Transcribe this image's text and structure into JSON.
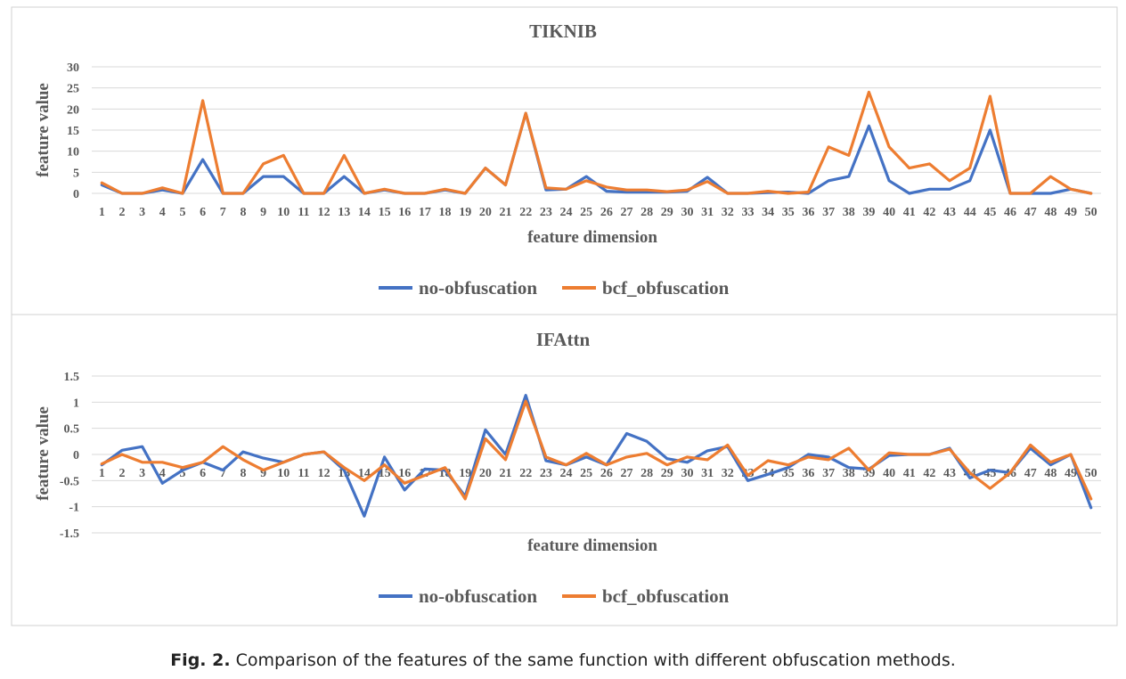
{
  "caption": {
    "label": "Fig. 2.",
    "text": "Comparison of the features of the same function with different obfuscation methods."
  },
  "colors": {
    "series1": "#4472c4",
    "series2": "#ed7d31",
    "grid": "#d9d9d9",
    "frame": "#d0d0d0"
  },
  "chart_data": [
    {
      "type": "line",
      "title": "TIKNIB",
      "xlabel": "feature dimension",
      "ylabel": "feature value",
      "ylim": [
        0,
        30
      ],
      "yticks": [
        "0",
        "5",
        "10",
        "15",
        "20",
        "25",
        "30"
      ],
      "ytick_values": [
        0,
        5,
        10,
        15,
        20,
        25,
        30
      ],
      "categories": [
        "1",
        "2",
        "3",
        "4",
        "5",
        "6",
        "7",
        "8",
        "9",
        "10",
        "11",
        "12",
        "13",
        "14",
        "15",
        "16",
        "17",
        "18",
        "19",
        "20",
        "21",
        "22",
        "23",
        "24",
        "25",
        "26",
        "27",
        "28",
        "29",
        "30",
        "31",
        "32",
        "33",
        "34",
        "35",
        "36",
        "37",
        "38",
        "39",
        "40",
        "41",
        "42",
        "43",
        "44",
        "45",
        "46",
        "47",
        "48",
        "49",
        "50"
      ],
      "grid": true,
      "legend": "bottom",
      "series": [
        {
          "name": "no-obfuscation",
          "values": [
            2,
            0,
            0,
            0.8,
            0,
            8,
            0,
            0,
            4,
            4,
            0,
            0,
            4,
            0,
            0.8,
            0,
            0,
            0.8,
            0,
            6,
            2,
            19,
            0.8,
            1,
            4,
            0.5,
            0.3,
            0.3,
            0.3,
            0.5,
            3.8,
            0,
            0,
            0.2,
            0.3,
            0,
            3,
            4,
            16,
            3,
            0,
            1,
            1,
            3,
            15,
            0,
            0,
            0,
            1,
            0
          ]
        },
        {
          "name": "bcf_obfuscation",
          "values": [
            2.5,
            0,
            0,
            1.3,
            0,
            22,
            0,
            0,
            7,
            9,
            0,
            0,
            9,
            0,
            1,
            0,
            0,
            1,
            0,
            6,
            2,
            19,
            1.3,
            1,
            3,
            1.5,
            0.8,
            0.8,
            0.4,
            0.8,
            2.8,
            0,
            0,
            0.5,
            0,
            0.3,
            11,
            9,
            24,
            11,
            6,
            7,
            3,
            6,
            23,
            0,
            0,
            4,
            1,
            0
          ]
        }
      ]
    },
    {
      "type": "line",
      "title": "IFAttn",
      "xlabel": "feature dimension",
      "ylabel": "feature value",
      "ylim": [
        -1.5,
        1.5
      ],
      "yticks": [
        "-1.5",
        "-1",
        "-0.5",
        "0",
        "0.5",
        "1",
        "1.5"
      ],
      "ytick_values": [
        -1.5,
        -1,
        -0.5,
        0,
        0.5,
        1,
        1.5
      ],
      "categories": [
        "1",
        "2",
        "3",
        "4",
        "5",
        "6",
        "7",
        "8",
        "9",
        "10",
        "11",
        "12",
        "13",
        "14",
        "15",
        "16",
        "17",
        "18",
        "19",
        "20",
        "21",
        "22",
        "23",
        "24",
        "25",
        "26",
        "27",
        "28",
        "29",
        "30",
        "31",
        "32",
        "33",
        "34",
        "35",
        "36",
        "37",
        "38",
        "39",
        "40",
        "41",
        "42",
        "43",
        "44",
        "45",
        "46",
        "47",
        "48",
        "49",
        "50"
      ],
      "grid": true,
      "legend": "bottom",
      "series": [
        {
          "name": "no-obfuscation",
          "values": [
            -0.2,
            0.08,
            0.15,
            -0.55,
            -0.3,
            -0.15,
            -0.3,
            0.05,
            -0.07,
            -0.15,
            0,
            0.05,
            -0.3,
            -1.18,
            -0.05,
            -0.68,
            -0.28,
            -0.3,
            -0.8,
            0.47,
            0,
            1.13,
            -0.12,
            -0.2,
            -0.05,
            -0.2,
            0.4,
            0.25,
            -0.08,
            -0.15,
            0.07,
            0.15,
            -0.5,
            -0.38,
            -0.25,
            0,
            -0.05,
            -0.25,
            -0.28,
            -0.02,
            0,
            0,
            0.12,
            -0.45,
            -0.3,
            -0.35,
            0.12,
            -0.2,
            0,
            -1.02
          ]
        },
        {
          "name": "bcf_obfuscation",
          "values": [
            -0.18,
            0,
            -0.15,
            -0.15,
            -0.25,
            -0.15,
            0.15,
            -0.1,
            -0.3,
            -0.15,
            0,
            0.05,
            -0.25,
            -0.5,
            -0.2,
            -0.55,
            -0.4,
            -0.25,
            -0.85,
            0.3,
            -0.1,
            1.02,
            -0.05,
            -0.2,
            0.02,
            -0.2,
            -0.05,
            0.02,
            -0.2,
            -0.05,
            -0.1,
            0.18,
            -0.4,
            -0.12,
            -0.2,
            -0.05,
            -0.1,
            0.12,
            -0.3,
            0.03,
            0,
            0,
            0.1,
            -0.35,
            -0.65,
            -0.35,
            0.18,
            -0.15,
            0,
            -0.85
          ]
        }
      ]
    }
  ]
}
